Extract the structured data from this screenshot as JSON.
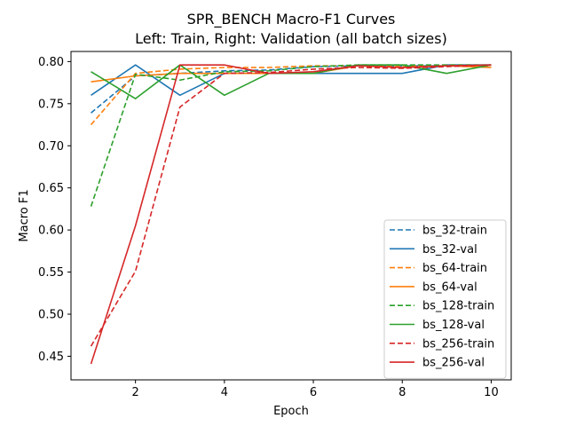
{
  "chart_data": {
    "type": "line",
    "title": "SPR_BENCH Macro-F1 Curves",
    "subtitle": "Left: Train, Right: Validation (all batch sizes)",
    "xlabel": "Epoch",
    "ylabel": "Macro F1",
    "xlim": [
      0.55,
      10.45
    ],
    "ylim": [
      0.422,
      0.812
    ],
    "xticks": [
      2,
      4,
      6,
      8,
      10
    ],
    "yticks": [
      0.45,
      0.5,
      0.55,
      0.6,
      0.65,
      0.7,
      0.75,
      0.8
    ],
    "ytick_labels": [
      "0.45",
      "0.50",
      "0.55",
      "0.60",
      "0.65",
      "0.70",
      "0.75",
      "0.80"
    ],
    "grid": false,
    "legend_position": "lower-right",
    "x": [
      1,
      2,
      3,
      4,
      5,
      6,
      7,
      8,
      9,
      10
    ],
    "series": [
      {
        "name": "bs_32-train",
        "color": "#1f77b4",
        "style": "dashed",
        "values": [
          0.739,
          0.783,
          0.786,
          0.789,
          0.79,
          0.794,
          0.795,
          0.795,
          0.795,
          0.796
        ]
      },
      {
        "name": "bs_32-val",
        "color": "#1f77b4",
        "style": "solid",
        "values": [
          0.76,
          0.796,
          0.76,
          0.786,
          0.786,
          0.786,
          0.786,
          0.786,
          0.796,
          0.796
        ]
      },
      {
        "name": "bs_64-train",
        "color": "#ff7f0e",
        "style": "dashed",
        "values": [
          0.725,
          0.786,
          0.791,
          0.793,
          0.793,
          0.795,
          0.795,
          0.795,
          0.795,
          0.795
        ]
      },
      {
        "name": "bs_64-val",
        "color": "#ff7f0e",
        "style": "solid",
        "values": [
          0.776,
          0.783,
          0.786,
          0.786,
          0.786,
          0.786,
          0.795,
          0.793,
          0.795,
          0.793
        ]
      },
      {
        "name": "bs_128-train",
        "color": "#2ca02c",
        "style": "dashed",
        "values": [
          0.628,
          0.785,
          0.778,
          0.788,
          0.789,
          0.794,
          0.796,
          0.796,
          0.796,
          0.796
        ]
      },
      {
        "name": "bs_128-val",
        "color": "#2ca02c",
        "style": "solid",
        "values": [
          0.788,
          0.756,
          0.796,
          0.76,
          0.786,
          0.786,
          0.796,
          0.796,
          0.786,
          0.796
        ]
      },
      {
        "name": "bs_256-train",
        "color": "#d62728",
        "style": "dashed",
        "values": [
          0.462,
          0.551,
          0.746,
          0.786,
          0.787,
          0.791,
          0.793,
          0.792,
          0.794,
          0.796
        ]
      },
      {
        "name": "bs_256-val",
        "color": "#d62728",
        "style": "solid",
        "values": [
          0.441,
          0.605,
          0.796,
          0.796,
          0.786,
          0.788,
          0.795,
          0.793,
          0.795,
          0.796
        ]
      }
    ]
  }
}
